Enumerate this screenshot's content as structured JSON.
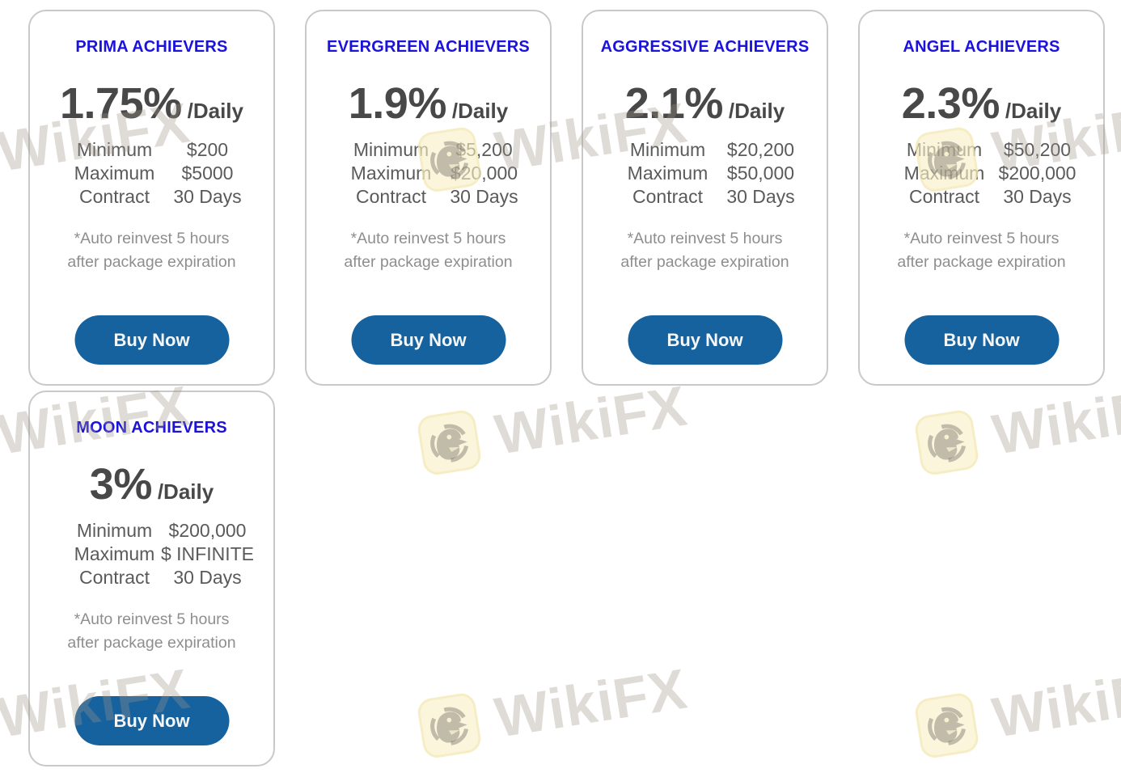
{
  "colors": {
    "title_blue": "#1b12dc",
    "rate_gray": "#484848",
    "spec_gray": "#5a5a5a",
    "note_gray": "#8e8e8e",
    "button_blue": "#15629e",
    "button_text": "#f4f6f8",
    "card_border": "#c9c9c9",
    "page_bg": "#ffffff",
    "watermark_badge_yellow": "#f8efc6",
    "watermark_text_gray": "#ddd8d2"
  },
  "cards": [
    {
      "title": "PRIMA ACHIEVERS",
      "rate": "1.75%",
      "rate_suffix": "/Daily",
      "specs": [
        {
          "label": "Minimum",
          "value": "$200"
        },
        {
          "label": "Maximum",
          "value": "$5000"
        },
        {
          "label": "Contract",
          "value": "30 Days"
        }
      ],
      "note_line1": "*Auto reinvest 5 hours",
      "note_line2": "after package expiration",
      "button_label": "Buy Now"
    },
    {
      "title": "EVERGREEN ACHIEVERS",
      "rate": "1.9%",
      "rate_suffix": "/Daily",
      "specs": [
        {
          "label": "Minimum",
          "value": "$5,200"
        },
        {
          "label": "Maximum",
          "value": "$20,000"
        },
        {
          "label": "Contract",
          "value": "30 Days"
        }
      ],
      "note_line1": "*Auto reinvest 5 hours",
      "note_line2": "after package expiration",
      "button_label": "Buy Now"
    },
    {
      "title": "AGGRESSIVE ACHIEVERS",
      "rate": "2.1%",
      "rate_suffix": "/Daily",
      "specs": [
        {
          "label": "Minimum",
          "value": "$20,200"
        },
        {
          "label": "Maximum",
          "value": "$50,000"
        },
        {
          "label": "Contract",
          "value": "30 Days"
        }
      ],
      "note_line1": "*Auto reinvest 5 hours",
      "note_line2": "after package expiration",
      "button_label": "Buy Now"
    },
    {
      "title": "ANGEL ACHIEVERS",
      "rate": "2.3%",
      "rate_suffix": "/Daily",
      "specs": [
        {
          "label": "Minimum",
          "value": "$50,200"
        },
        {
          "label": "Maximum",
          "value": "$200,000"
        },
        {
          "label": "Contract",
          "value": "30 Days"
        }
      ],
      "note_line1": "*Auto reinvest 5 hours",
      "note_line2": "after package expiration",
      "button_label": "Buy Now"
    },
    {
      "title": "MOON ACHIEVERS",
      "rate": "3%",
      "rate_suffix": "/Daily",
      "specs": [
        {
          "label": "Minimum",
          "value": "$200,000"
        },
        {
          "label": "Maximum",
          "value": "$ INFINITE"
        },
        {
          "label": "Contract",
          "value": "30 Days"
        }
      ],
      "note_line1": "*Auto reinvest 5 hours",
      "note_line2": "after package expiration",
      "button_label": "Buy Now"
    }
  ],
  "watermark": {
    "text": "WikiFX",
    "icon": "wikifx-eagle-icon"
  }
}
